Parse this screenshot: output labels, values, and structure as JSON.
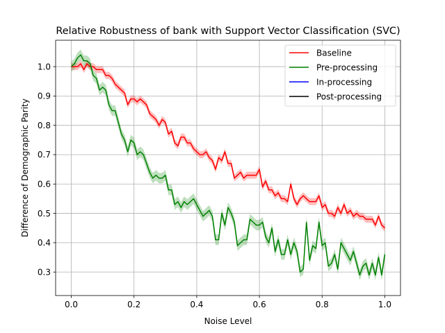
{
  "chart_data": {
    "type": "line",
    "title": "Relative Robustness of bank with Support Vector Classification (SVC)",
    "xlabel": "Noise Level",
    "ylabel": "Difference of Demographic Parity",
    "xlim": [
      -0.05,
      1.05
    ],
    "ylim": [
      0.22,
      1.09
    ],
    "xticks": [
      0.0,
      0.2,
      0.4,
      0.6,
      0.8,
      1.0
    ],
    "xtick_labels": [
      "0.0",
      "0.2",
      "0.4",
      "0.6",
      "0.8",
      "1.0"
    ],
    "yticks": [
      0.3,
      0.4,
      0.5,
      0.6,
      0.7,
      0.8,
      0.9,
      1.0
    ],
    "ytick_labels": [
      "0.3",
      "0.4",
      "0.5",
      "0.6",
      "0.7",
      "0.8",
      "0.9",
      "1.0"
    ],
    "grid": true,
    "legend_position": "top-right",
    "legend": [
      {
        "name": "Baseline",
        "color": "#ff0000"
      },
      {
        "name": "Pre-processing",
        "color": "#008000"
      },
      {
        "name": "In-processing",
        "color": "#0000ff"
      },
      {
        "name": "Post-processing",
        "color": "#000000"
      }
    ],
    "x": [
      0.0,
      0.01,
      0.02,
      0.03,
      0.04,
      0.05,
      0.06,
      0.07,
      0.08,
      0.09,
      0.1,
      0.11,
      0.12,
      0.13,
      0.14,
      0.15,
      0.16,
      0.17,
      0.18,
      0.19,
      0.2,
      0.21,
      0.22,
      0.23,
      0.24,
      0.25,
      0.26,
      0.27,
      0.28,
      0.29,
      0.3,
      0.31,
      0.32,
      0.33,
      0.34,
      0.35,
      0.36,
      0.37,
      0.38,
      0.39,
      0.4,
      0.41,
      0.42,
      0.43,
      0.44,
      0.45,
      0.46,
      0.47,
      0.48,
      0.49,
      0.5,
      0.51,
      0.52,
      0.53,
      0.54,
      0.55,
      0.56,
      0.57,
      0.58,
      0.59,
      0.6,
      0.61,
      0.62,
      0.63,
      0.64,
      0.65,
      0.66,
      0.67,
      0.68,
      0.69,
      0.7,
      0.71,
      0.72,
      0.73,
      0.74,
      0.75,
      0.76,
      0.77,
      0.78,
      0.79,
      0.8,
      0.81,
      0.82,
      0.83,
      0.84,
      0.85,
      0.86,
      0.87,
      0.88,
      0.89,
      0.9,
      0.91,
      0.92,
      0.93,
      0.94,
      0.95,
      0.96,
      0.97,
      0.98,
      0.99,
      1.0
    ],
    "series": [
      {
        "name": "Baseline",
        "color": "#ff0000",
        "band": 0.012,
        "values": [
          1.0,
          1.0,
          1.0,
          1.01,
          0.99,
          1.01,
          1.0,
          1.0,
          0.99,
          0.99,
          0.99,
          0.97,
          0.97,
          0.96,
          0.94,
          0.93,
          0.92,
          0.91,
          0.87,
          0.89,
          0.89,
          0.88,
          0.89,
          0.88,
          0.87,
          0.84,
          0.83,
          0.82,
          0.8,
          0.82,
          0.81,
          0.77,
          0.78,
          0.74,
          0.73,
          0.76,
          0.76,
          0.74,
          0.74,
          0.72,
          0.71,
          0.7,
          0.7,
          0.71,
          0.69,
          0.68,
          0.65,
          0.69,
          0.68,
          0.71,
          0.67,
          0.67,
          0.62,
          0.63,
          0.64,
          0.62,
          0.63,
          0.63,
          0.63,
          0.63,
          0.65,
          0.59,
          0.61,
          0.58,
          0.58,
          0.56,
          0.57,
          0.55,
          0.55,
          0.54,
          0.6,
          0.55,
          0.53,
          0.55,
          0.56,
          0.55,
          0.54,
          0.54,
          0.54,
          0.56,
          0.52,
          0.53,
          0.5,
          0.5,
          0.49,
          0.52,
          0.5,
          0.53,
          0.5,
          0.51,
          0.49,
          0.5,
          0.49,
          0.49,
          0.48,
          0.48,
          0.48,
          0.46,
          0.49,
          0.46,
          0.45
        ]
      },
      {
        "name": "Pre-processing",
        "color": "#008000",
        "band": 0.018,
        "values": [
          1.0,
          1.01,
          1.03,
          1.04,
          1.02,
          1.02,
          1.01,
          0.97,
          0.96,
          0.92,
          0.93,
          0.92,
          0.87,
          0.85,
          0.85,
          0.81,
          0.77,
          0.75,
          0.71,
          0.75,
          0.74,
          0.7,
          0.71,
          0.7,
          0.67,
          0.64,
          0.62,
          0.63,
          0.62,
          0.62,
          0.63,
          0.58,
          0.58,
          0.53,
          0.54,
          0.52,
          0.54,
          0.53,
          0.54,
          0.55,
          0.53,
          0.51,
          0.49,
          0.5,
          0.51,
          0.49,
          0.41,
          0.41,
          0.5,
          0.46,
          0.52,
          0.5,
          0.47,
          0.39,
          0.4,
          0.41,
          0.41,
          0.48,
          0.47,
          0.46,
          0.46,
          0.47,
          0.42,
          0.4,
          0.45,
          0.37,
          0.41,
          0.36,
          0.36,
          0.41,
          0.36,
          0.4,
          0.37,
          0.3,
          0.31,
          0.47,
          0.34,
          0.39,
          0.38,
          0.47,
          0.39,
          0.4,
          0.32,
          0.33,
          0.36,
          0.31,
          0.4,
          0.38,
          0.36,
          0.34,
          0.37,
          0.33,
          0.29,
          0.32,
          0.33,
          0.29,
          0.33,
          0.29,
          0.35,
          0.29,
          0.36
        ]
      }
    ]
  }
}
